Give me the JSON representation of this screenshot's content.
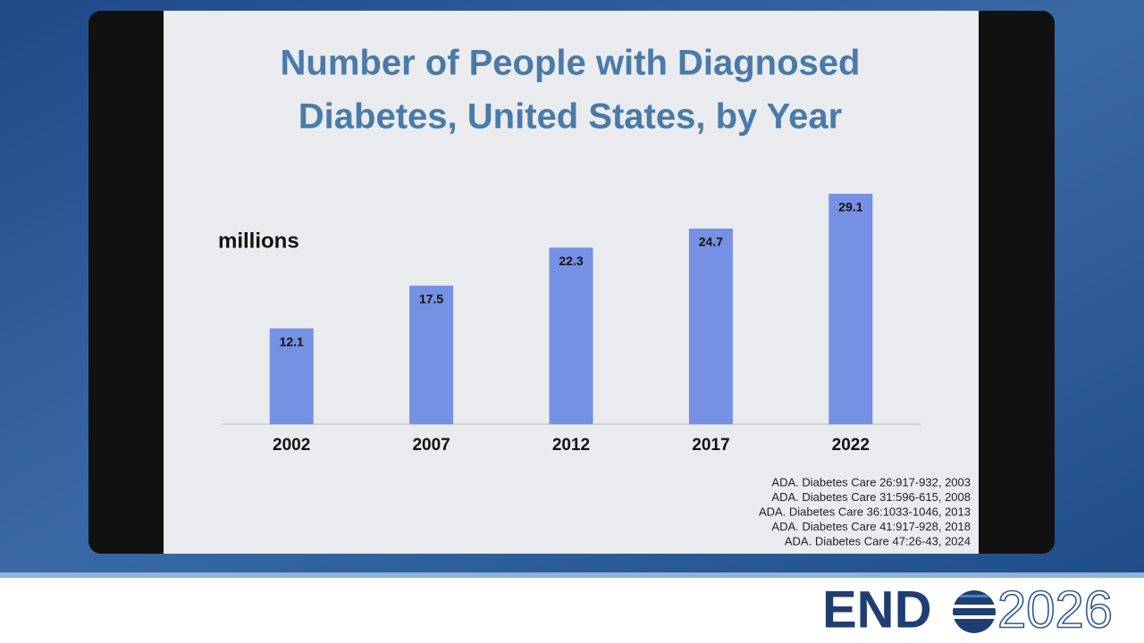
{
  "chart_data": {
    "type": "bar",
    "title": [
      "Number of People with Diagnosed",
      "Diabetes, United States, by Year"
    ],
    "y_label": "millions",
    "categories": [
      "2002",
      "2007",
      "2012",
      "2017",
      "2022"
    ],
    "values": [
      12.1,
      17.5,
      22.3,
      24.7,
      29.1
    ],
    "color": "#7690e3"
  },
  "references": [
    "ADA. Diabetes Care 26:917-932, 2003",
    "ADA. Diabetes Care 31:596-615, 2008",
    "ADA. Diabetes Care 36:1033-1046, 2013",
    "ADA. Diabetes Care 41:917-928, 2018",
    "ADA. Diabetes Care 47:26-43, 2024"
  ],
  "logo": {
    "left": "END",
    "right": "2026"
  }
}
